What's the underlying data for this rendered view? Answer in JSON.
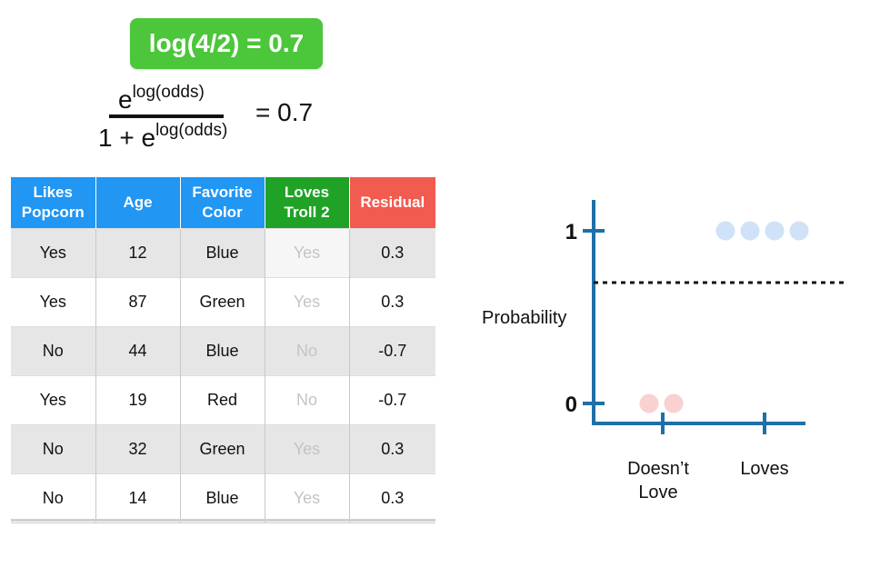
{
  "badge": {
    "text": "log(4/2) = 0.7",
    "color": "#4CC63A"
  },
  "equation": {
    "numerator_base": "e",
    "numerator_exponent": "log(odds)",
    "denominator_prefix": "1 + e",
    "denominator_exponent": "log(odds)",
    "rhs": "= 0.7"
  },
  "table": {
    "columns": [
      {
        "label_line1": "Likes",
        "label_line2": "Popcorn",
        "color": "#2196F3"
      },
      {
        "label_line1": "Age",
        "label_line2": "",
        "color": "#2196F3"
      },
      {
        "label_line1": "Favorite",
        "label_line2": "Color",
        "color": "#2196F3"
      },
      {
        "label_line1": "Loves",
        "label_line2": "Troll 2",
        "color": "#20A227"
      },
      {
        "label_line1": "Residual",
        "label_line2": "",
        "color": "#F25B4F"
      }
    ],
    "rows": [
      [
        "Yes",
        "12",
        "Blue",
        "Yes",
        "0.3"
      ],
      [
        "Yes",
        "87",
        "Green",
        "Yes",
        "0.3"
      ],
      [
        "No",
        "44",
        "Blue",
        "No",
        "-0.7"
      ],
      [
        "Yes",
        "19",
        "Red",
        "No",
        "-0.7"
      ],
      [
        "No",
        "32",
        "Green",
        "Yes",
        "0.3"
      ],
      [
        "No",
        "14",
        "Blue",
        "Yes",
        "0.3"
      ]
    ]
  },
  "chart_data": {
    "type": "scatter",
    "ylabel": "Probability",
    "y_ticks": [
      "0",
      "1"
    ],
    "ylim": [
      0,
      1
    ],
    "categories": [
      "Doesn’t Love",
      "Loves"
    ],
    "threshold_line": {
      "y": 0.7,
      "style": "dotted"
    },
    "points": [
      {
        "group": "Doesn’t Love",
        "y": 0,
        "color": "#F9D1D1"
      },
      {
        "group": "Doesn’t Love",
        "y": 0,
        "color": "#F9D1D1"
      },
      {
        "group": "Loves",
        "y": 1,
        "color": "#CFE2F7"
      },
      {
        "group": "Loves",
        "y": 1,
        "color": "#CFE2F7"
      },
      {
        "group": "Loves",
        "y": 1,
        "color": "#CFE2F7"
      },
      {
        "group": "Loves",
        "y": 1,
        "color": "#CFE2F7"
      }
    ],
    "axis_color": "#1F6FA8"
  }
}
